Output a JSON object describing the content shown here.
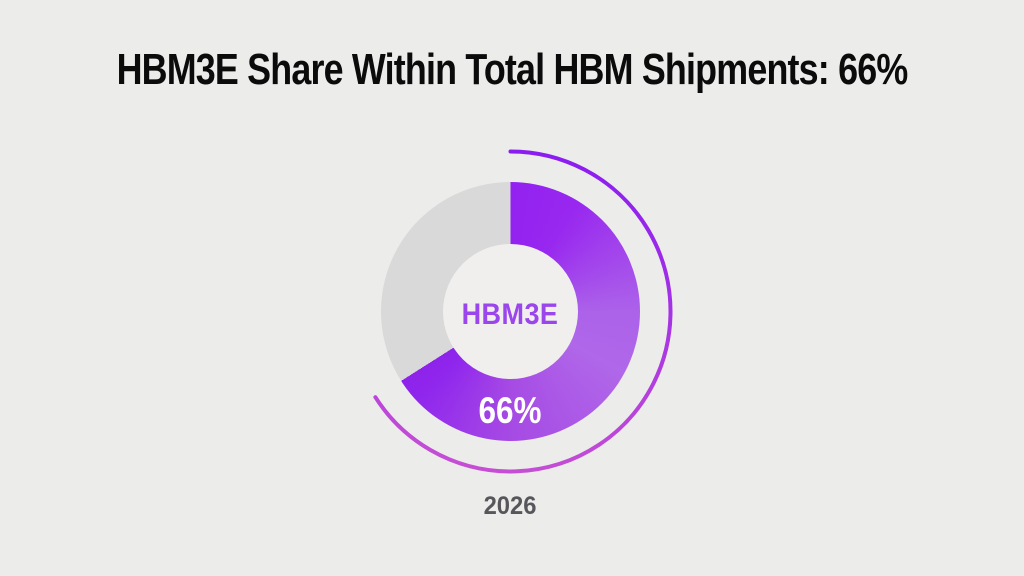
{
  "page": {
    "background": "#ECECEB"
  },
  "title": "HBM3E Share Within Total HBM Shipments: 66%",
  "chart_data": {
    "type": "pie",
    "title": "HBM3E Share Within Total HBM Shipments: 66%",
    "categories": [
      "HBM3E",
      "Other HBM"
    ],
    "values": [
      66,
      34
    ],
    "unit": "percent",
    "center_label": "HBM3E",
    "value_label": "66%",
    "xlabel": "2026",
    "legend": "none",
    "style": {
      "segment_color_stops": [
        [
          0,
          "#9322F0"
        ],
        [
          0.13,
          "#9827EF"
        ],
        [
          0.38,
          "#AC62E9"
        ],
        [
          0.5,
          "#B067E9"
        ],
        [
          0.76,
          "#A64AE4"
        ],
        [
          0.95,
          "#9027ED"
        ],
        [
          1,
          "#8E22EA"
        ]
      ],
      "remainder_color": "#D9D9D9",
      "outer_arc_colors": [
        "#8C1DF0",
        "#C64FD4"
      ],
      "center_label_color": "#9B45EC",
      "value_label_color": "#FFFFFF",
      "year_label_color": "#57565A",
      "title_color": "#0B0B0B",
      "hole_color": "#F0EFEE",
      "background": "#ECECEB"
    }
  }
}
